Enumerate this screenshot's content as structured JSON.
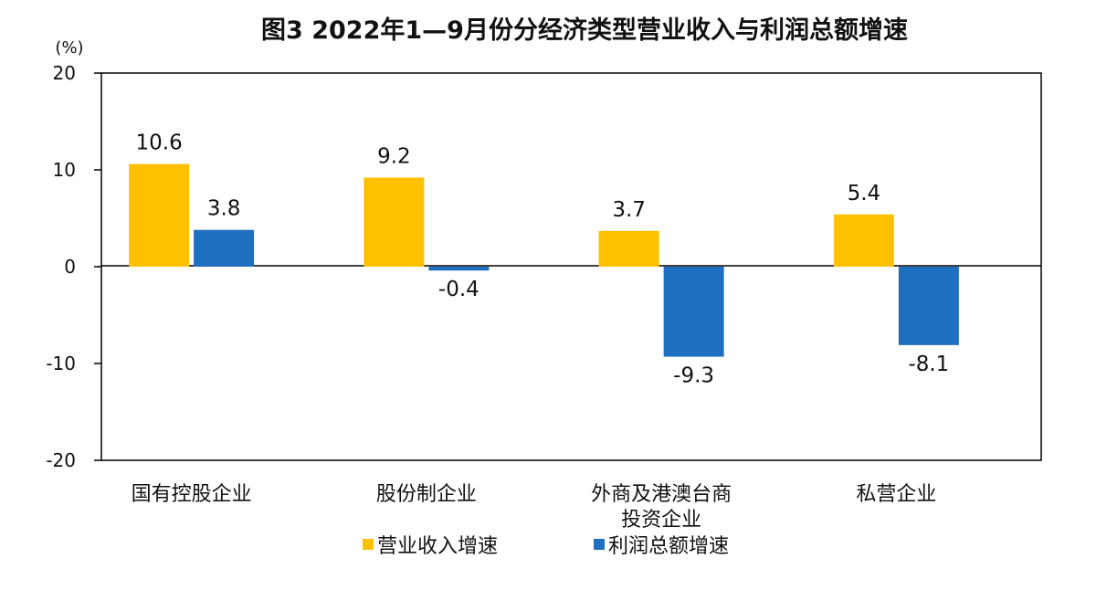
{
  "chart_data": {
    "type": "bar",
    "title": "图3  2022年1—9月份分经济类型营业收入与利润总额增速",
    "unit": "(%)",
    "categories": [
      [
        "国有控股企业"
      ],
      [
        "股份制企业"
      ],
      [
        "外商及港澳台商",
        "投资企业"
      ],
      [
        "私营企业"
      ]
    ],
    "series": [
      {
        "name": "营业收入增速",
        "color": "#FFC000",
        "values": [
          10.6,
          9.2,
          3.7,
          5.4
        ]
      },
      {
        "name": "利润总额增速",
        "color": "#1F6FC0",
        "values": [
          3.8,
          -0.4,
          -9.3,
          -8.1
        ]
      }
    ],
    "ylim": [
      -20,
      20
    ],
    "yticks": [
      20,
      10,
      0,
      -10,
      -20
    ],
    "ytick_labels": [
      "20",
      "10",
      "0",
      "-10",
      "-20"
    ],
    "value_labels": [
      [
        "10.6",
        "9.2",
        "3.7",
        "5.4"
      ],
      [
        "3.8",
        "-0.4",
        "-9.3",
        "-8.1"
      ]
    ],
    "grid": false,
    "legend_position": "bottom"
  }
}
